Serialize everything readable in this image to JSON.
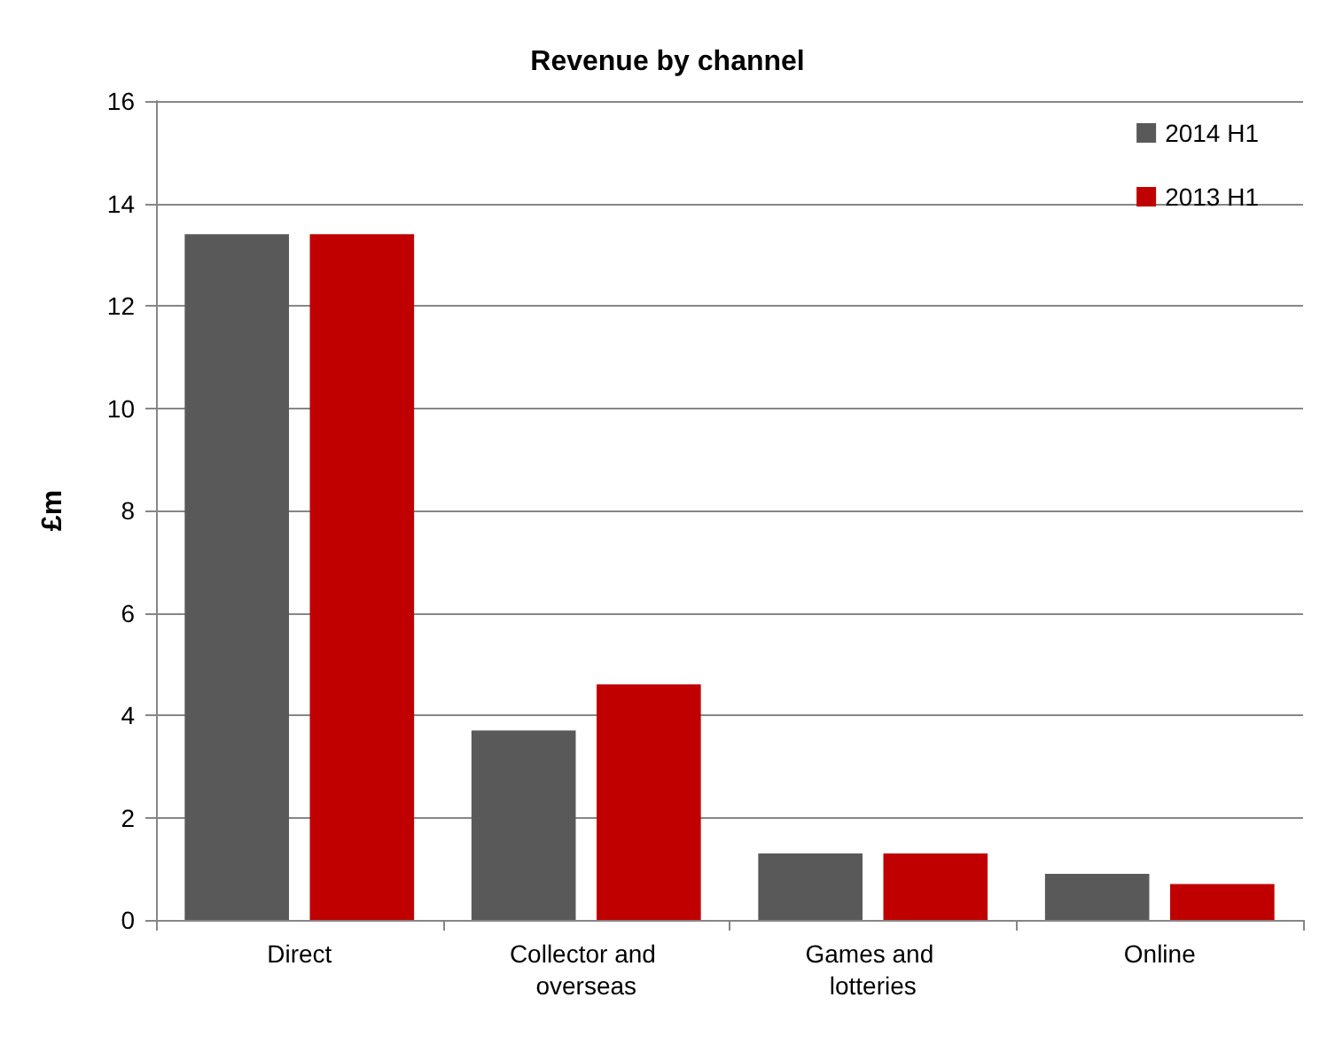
{
  "chart_data": {
    "type": "bar",
    "title": "Revenue by channel",
    "ylabel": "£m",
    "categories": [
      "Direct",
      "Collector and overseas",
      "Games and lotteries",
      "Online"
    ],
    "series": [
      {
        "name": "2014 H1",
        "color": "#595959",
        "values": [
          13.4,
          3.7,
          1.3,
          0.9
        ]
      },
      {
        "name": "2013 H1",
        "color": "#c00000",
        "values": [
          13.4,
          4.6,
          1.3,
          0.7
        ]
      }
    ],
    "ylim": [
      0,
      16
    ],
    "yticks": [
      0,
      2,
      4,
      6,
      8,
      10,
      12,
      14,
      16
    ],
    "grid": "y",
    "legend": "top right"
  }
}
